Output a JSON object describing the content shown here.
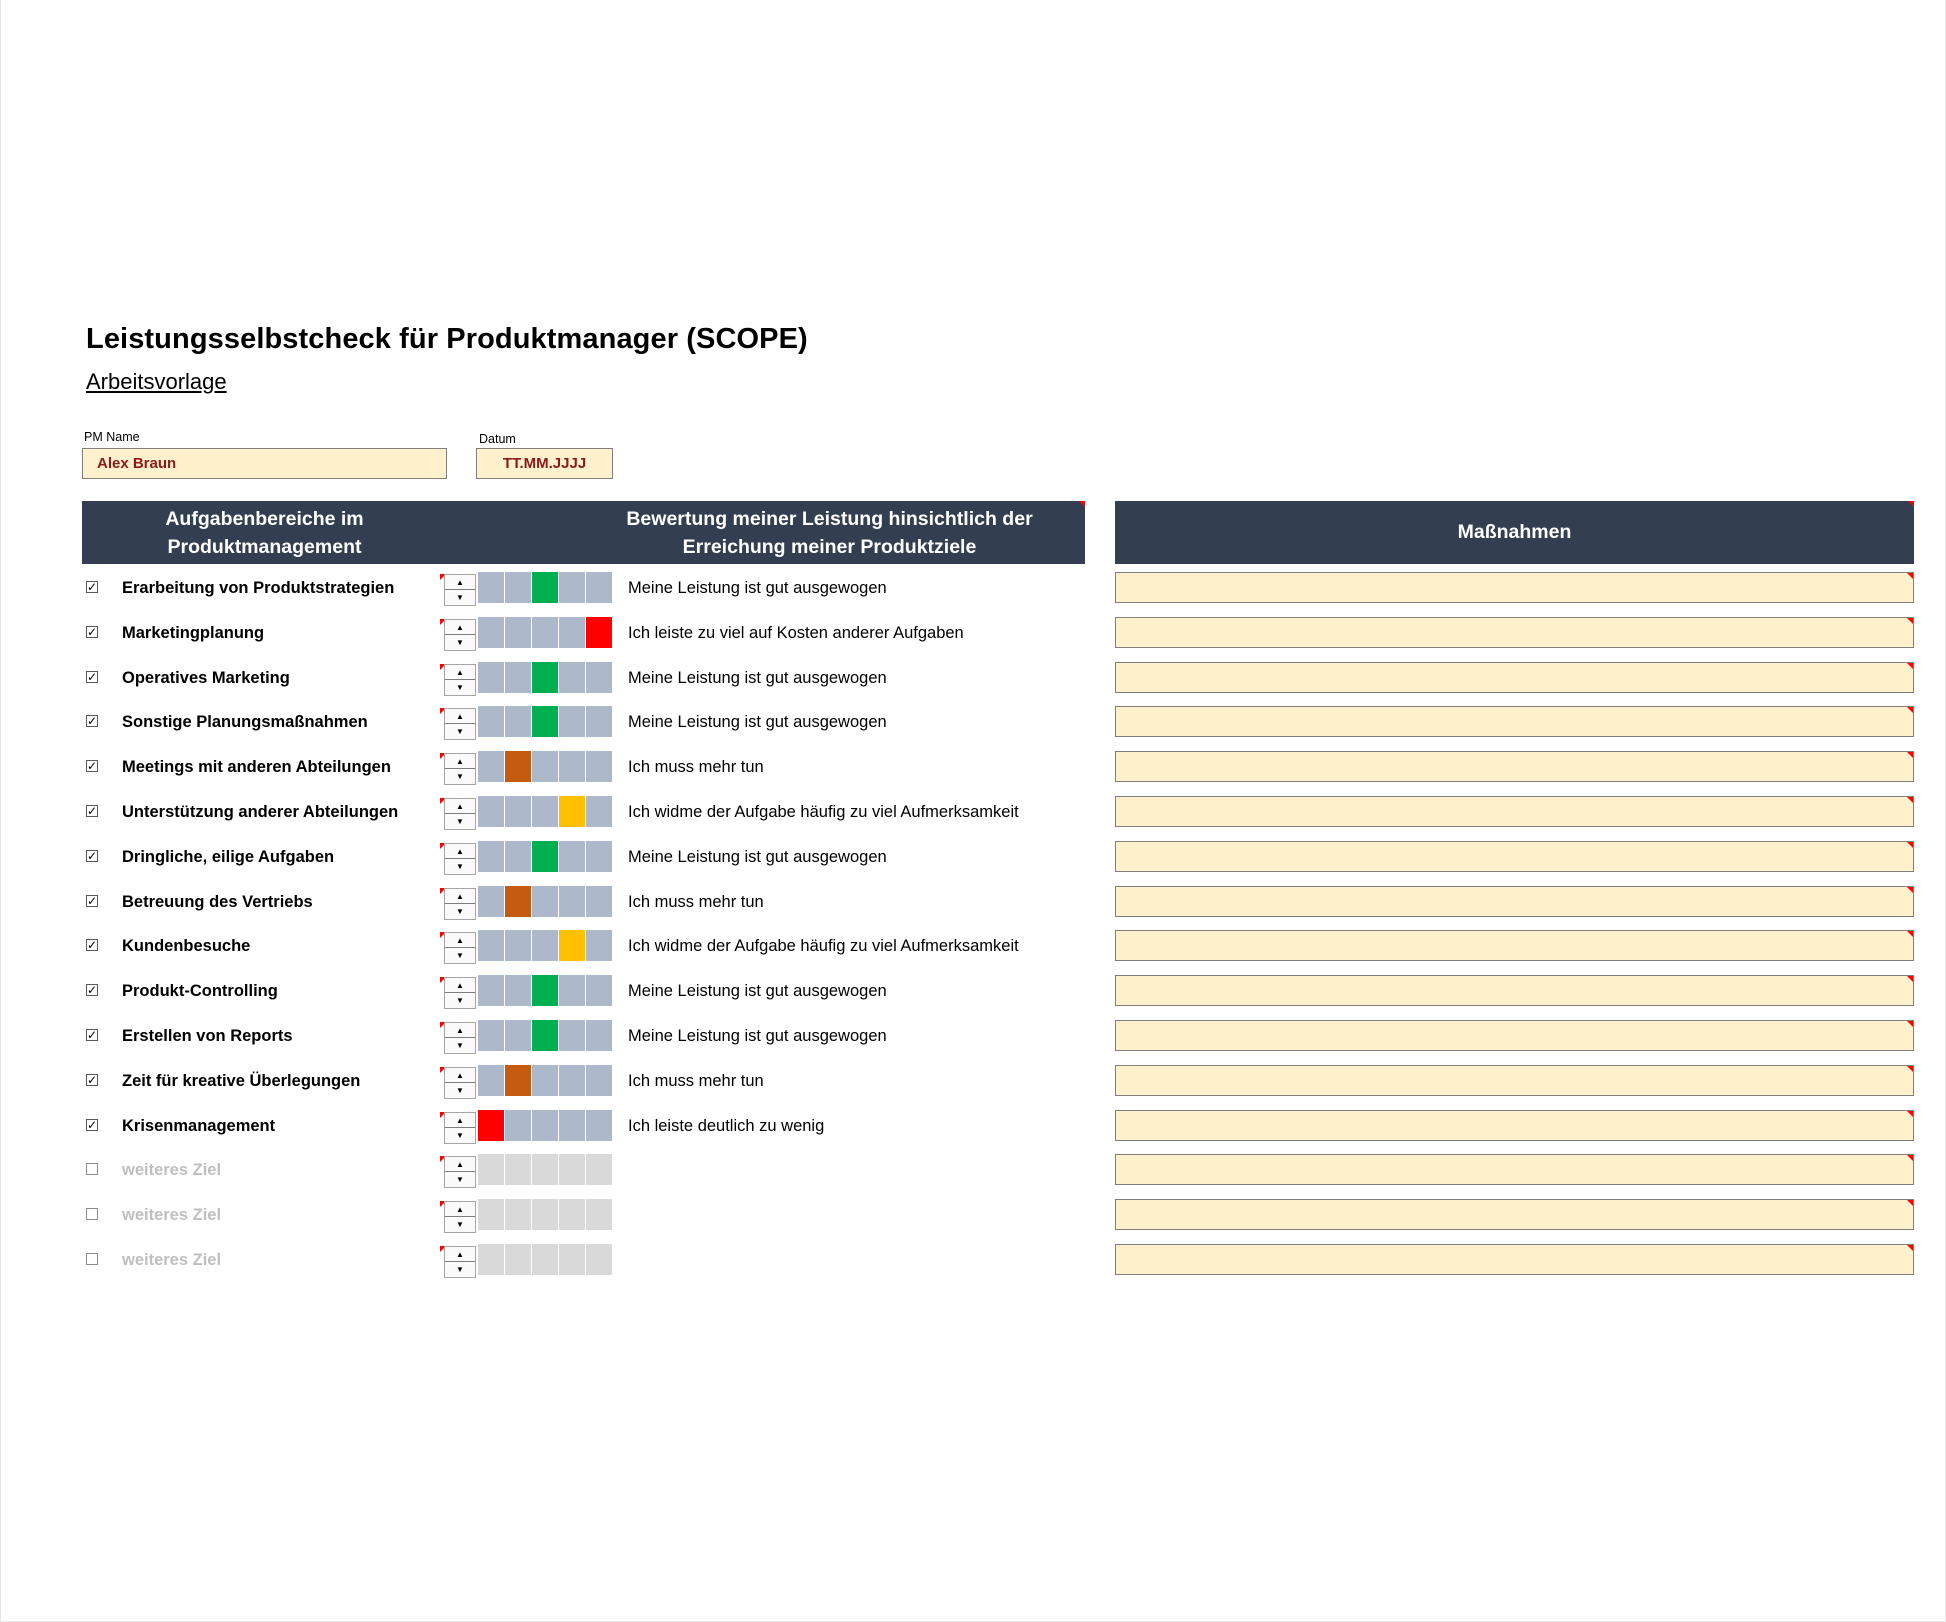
{
  "header": {
    "title": "Leistungsselbstcheck für Produktmanager (SCOPE)",
    "subtitle": "Arbeitsvorlage"
  },
  "fields": {
    "pm_name_label": "PM Name",
    "pm_name_value": "Alex Braun",
    "date_label": "Datum",
    "date_value": "TT.MM.JJJJ"
  },
  "table_headers": {
    "tasks": [
      "Aufgabenbereiche im",
      "Produktmanagement"
    ],
    "rating": [
      "Bewertung meiner Leistung hinsichtlich der",
      "Erreichung meiner Produktziele"
    ],
    "measures": "Maßnahmen"
  },
  "colors": {
    "header_bg": "#333f50",
    "field_bg": "#fff1cc",
    "cell_neutral": "#adb9ca",
    "cell_disabled": "#d9d9d9",
    "level_1": "#ff0000",
    "level_2": "#c55a11",
    "level_3": "#00b050",
    "level_4": "#ffc000",
    "level_5": "#ff0000"
  },
  "spinner": {
    "up_icon": "▲",
    "down_icon": "▼"
  },
  "rows": [
    {
      "checked": true,
      "checkbox_mark": "✓",
      "label": "Erarbeitung von Produktstrategien",
      "rating": 3,
      "verdict": "Meine Leistung ist gut ausgewogen",
      "measure": ""
    },
    {
      "checked": true,
      "checkbox_mark": "✓",
      "label": "Marketingplanung",
      "rating": 5,
      "verdict": "Ich leiste zu viel auf Kosten anderer Aufgaben",
      "measure": ""
    },
    {
      "checked": true,
      "checkbox_mark": "✓",
      "label": "Operatives Marketing",
      "rating": 3,
      "verdict": "Meine Leistung ist gut ausgewogen",
      "measure": ""
    },
    {
      "checked": true,
      "checkbox_mark": "✓",
      "label": "Sonstige Planungsmaßnahmen",
      "rating": 3,
      "verdict": "Meine Leistung ist gut ausgewogen",
      "measure": ""
    },
    {
      "checked": true,
      "checkbox_mark": "✓",
      "label": "Meetings mit anderen Abteilungen",
      "rating": 2,
      "verdict": "Ich muss mehr tun",
      "measure": ""
    },
    {
      "checked": true,
      "checkbox_mark": "✓",
      "label": "Unterstützung anderer Abteilungen",
      "rating": 4,
      "verdict": "Ich widme der Aufgabe häufig zu viel Aufmerksamkeit",
      "measure": ""
    },
    {
      "checked": true,
      "checkbox_mark": "✓",
      "label": "Dringliche, eilige Aufgaben",
      "rating": 3,
      "verdict": "Meine Leistung ist gut ausgewogen",
      "measure": ""
    },
    {
      "checked": true,
      "checkbox_mark": "✓",
      "label": "Betreuung des Vertriebs",
      "rating": 2,
      "verdict": "Ich muss mehr tun",
      "measure": ""
    },
    {
      "checked": true,
      "checkbox_mark": "✓",
      "label": "Kundenbesuche",
      "rating": 4,
      "verdict": "Ich widme der Aufgabe häufig zu viel Aufmerksamkeit",
      "measure": ""
    },
    {
      "checked": true,
      "checkbox_mark": "✓",
      "label": "Produkt-Controlling",
      "rating": 3,
      "verdict": "Meine Leistung ist gut ausgewogen",
      "measure": ""
    },
    {
      "checked": true,
      "checkbox_mark": "✓",
      "label": "Erstellen von Reports",
      "rating": 3,
      "verdict": "Meine Leistung ist gut ausgewogen",
      "measure": ""
    },
    {
      "checked": true,
      "checkbox_mark": "✓",
      "label": "Zeit für kreative Überlegungen",
      "rating": 2,
      "verdict": "Ich muss mehr tun",
      "measure": ""
    },
    {
      "checked": true,
      "checkbox_mark": "✓",
      "label": "Krisenmanagement",
      "rating": 1,
      "verdict": "Ich leiste deutlich zu wenig",
      "measure": ""
    },
    {
      "checked": false,
      "checkbox_mark": "",
      "label": "weiteres Ziel",
      "rating": 0,
      "verdict": "",
      "measure": ""
    },
    {
      "checked": false,
      "checkbox_mark": "",
      "label": "weiteres Ziel",
      "rating": 0,
      "verdict": "",
      "measure": ""
    },
    {
      "checked": false,
      "checkbox_mark": "",
      "label": "weiteres Ziel",
      "rating": 0,
      "verdict": "",
      "measure": ""
    }
  ]
}
